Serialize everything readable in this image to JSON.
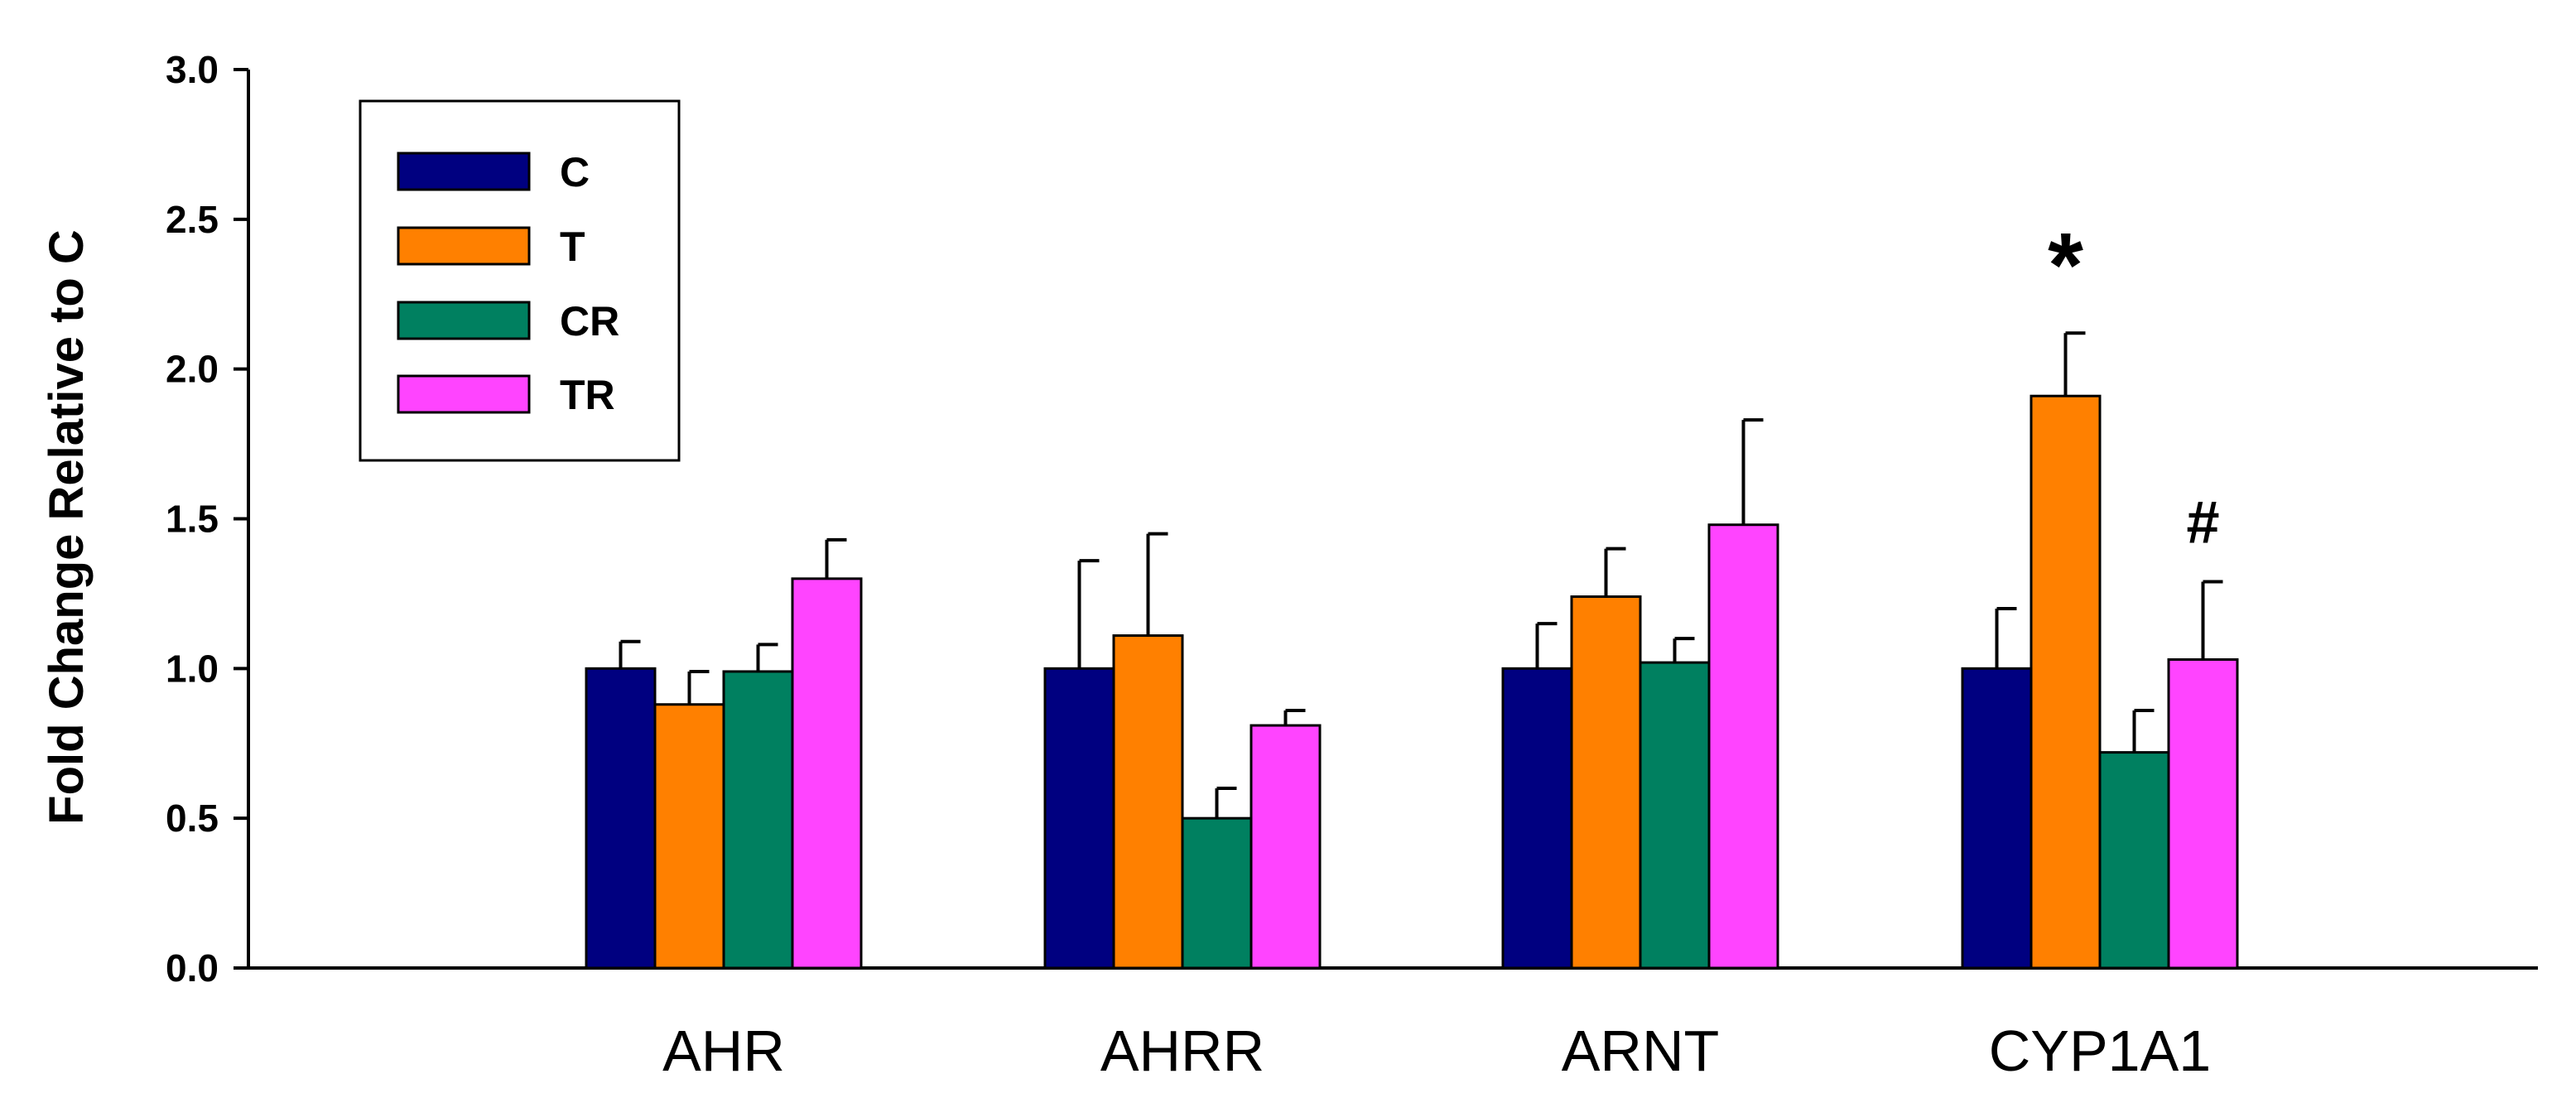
{
  "chart_data": {
    "type": "bar",
    "title": "",
    "xlabel": "",
    "ylabel": "Fold Change Relative to C",
    "ylim": [
      0,
      3.0
    ],
    "yticks": [
      "0.0",
      "0.5",
      "1.0",
      "1.5",
      "2.0",
      "2.5",
      "3.0"
    ],
    "yticks_values": [
      0,
      0.5,
      1.0,
      1.5,
      2.0,
      2.5,
      3.0
    ],
    "categories": [
      "AHR",
      "AHRR",
      "ARNT",
      "CYP1A1"
    ],
    "grid": false,
    "legend_position": "top-left",
    "series": [
      {
        "name": "C",
        "color": "#000080",
        "values": [
          1.0,
          1.0,
          1.0,
          1.0
        ],
        "errors": [
          0.09,
          0.36,
          0.15,
          0.2
        ]
      },
      {
        "name": "T",
        "color": "#ff8000",
        "values": [
          0.88,
          1.11,
          1.24,
          1.91
        ],
        "errors": [
          0.11,
          0.34,
          0.16,
          0.21
        ]
      },
      {
        "name": "CR",
        "color": "#008060",
        "values": [
          0.99,
          0.5,
          1.02,
          0.72
        ],
        "errors": [
          0.09,
          0.1,
          0.08,
          0.14
        ]
      },
      {
        "name": "TR",
        "color": "#ff44ff",
        "values": [
          1.3,
          0.81,
          1.48,
          1.03
        ],
        "errors": [
          0.13,
          0.05,
          0.35,
          0.26
        ]
      }
    ],
    "annotations": [
      {
        "text": "*",
        "category": "CYP1A1",
        "series": "T",
        "value": 2.42
      },
      {
        "text": "#",
        "category": "CYP1A1",
        "series": "TR",
        "value": 1.48
      }
    ]
  }
}
